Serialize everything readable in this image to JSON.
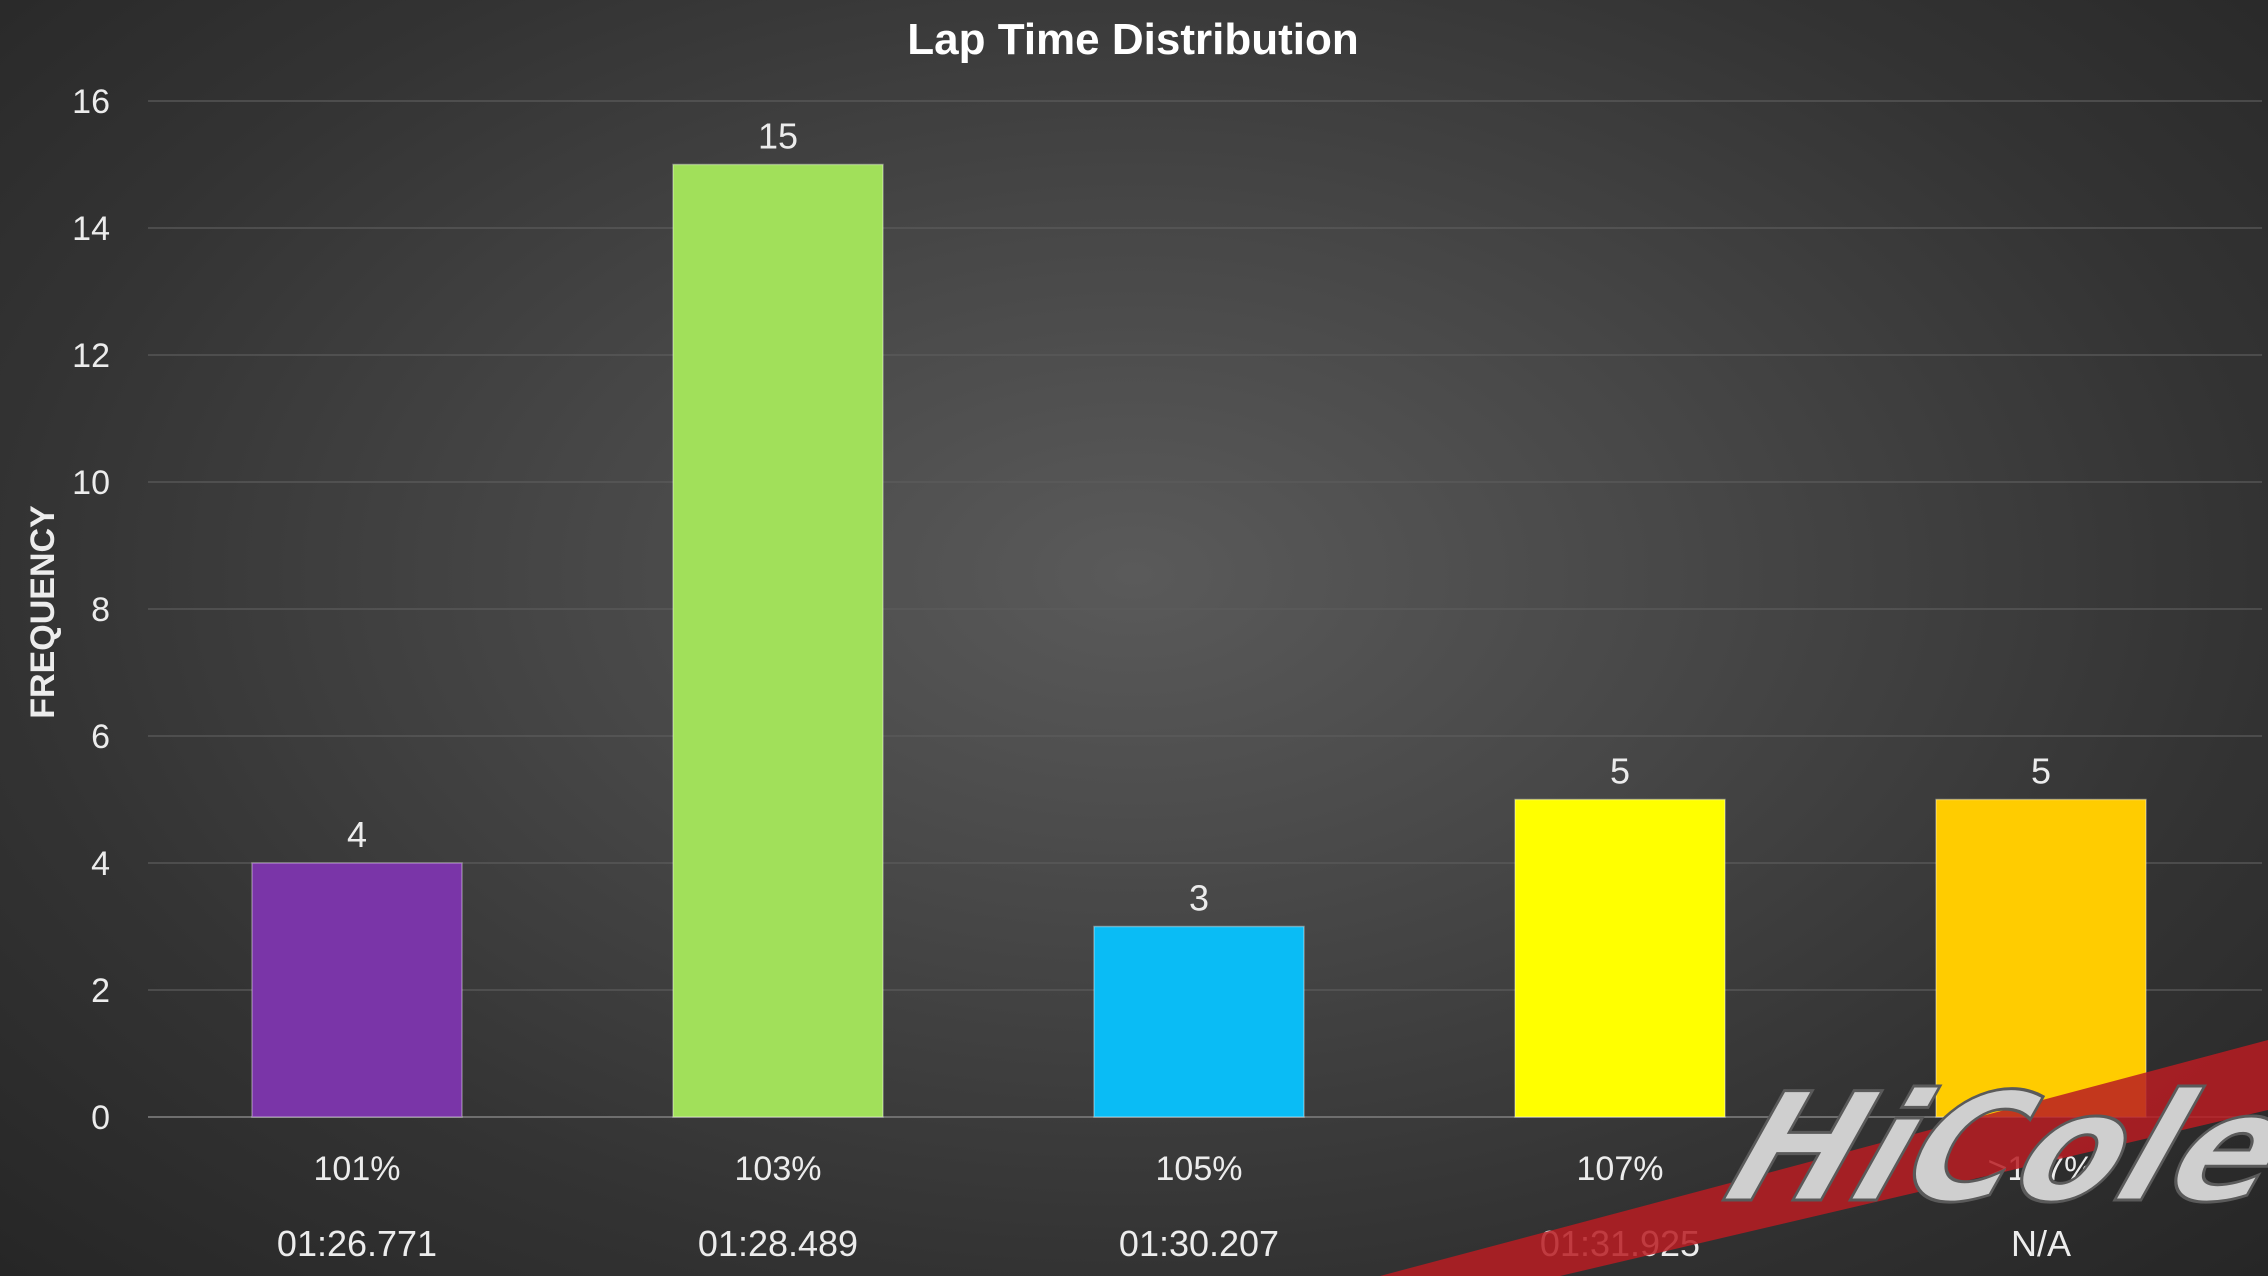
{
  "chart_data": {
    "type": "bar",
    "title": "Lap Time Distribution",
    "ylabel": "FREQUENCY",
    "xlabel": "",
    "ylim": [
      0,
      16
    ],
    "yticks": [
      0,
      2,
      4,
      6,
      8,
      10,
      12,
      14,
      16
    ],
    "grid": true,
    "legend": "none",
    "categories": [
      "101%",
      "103%",
      "105%",
      "107%",
      ">107%"
    ],
    "times": [
      "01:26.771",
      "01:28.489",
      "01:30.207",
      "01:31.925",
      "N/A"
    ],
    "values": [
      4,
      15,
      3,
      5,
      5
    ],
    "colors": [
      "#7a35a8",
      "#a1e05a",
      "#0abcf5",
      "#ffff00",
      "#ffcc00"
    ],
    "highlight_color": "#e23a44"
  },
  "logo": {
    "text": "HiCole",
    "stripe_color": "#b81c22"
  }
}
